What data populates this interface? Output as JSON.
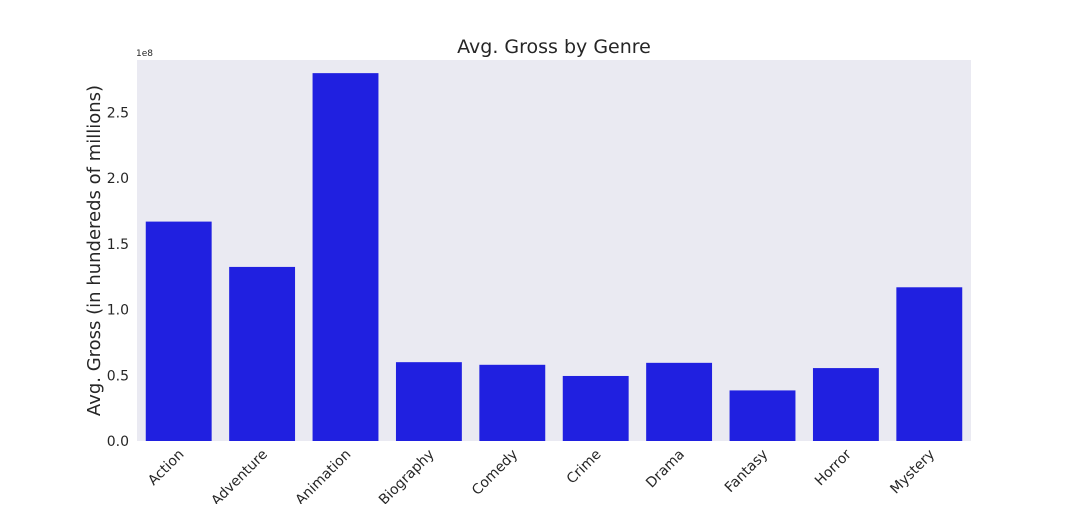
{
  "chart_data": {
    "type": "bar",
    "title": "Avg. Gross by Genre",
    "xlabel": "",
    "ylabel": "Avg. Gross (in hundereds of millions)",
    "y_offset_label": "1e8",
    "categories": [
      "Action",
      "Adventure",
      "Animation",
      "Biography",
      "Comedy",
      "Crime",
      "Drama",
      "Fantasy",
      "Horror",
      "Mystery"
    ],
    "values": [
      167000000,
      132500000,
      280000000,
      60000000,
      58000000,
      49500000,
      59500000,
      38500000,
      55500000,
      117000000
    ],
    "ylim": [
      0,
      290000000
    ],
    "yticks": [
      0,
      50000000,
      100000000,
      150000000,
      200000000,
      250000000
    ],
    "ytick_labels": [
      "0.0",
      "0.5",
      "1.0",
      "1.5",
      "2.0",
      "2.5"
    ],
    "grid": false,
    "bar_color": "#2020e0",
    "plot_background": "#eaeaf2"
  }
}
